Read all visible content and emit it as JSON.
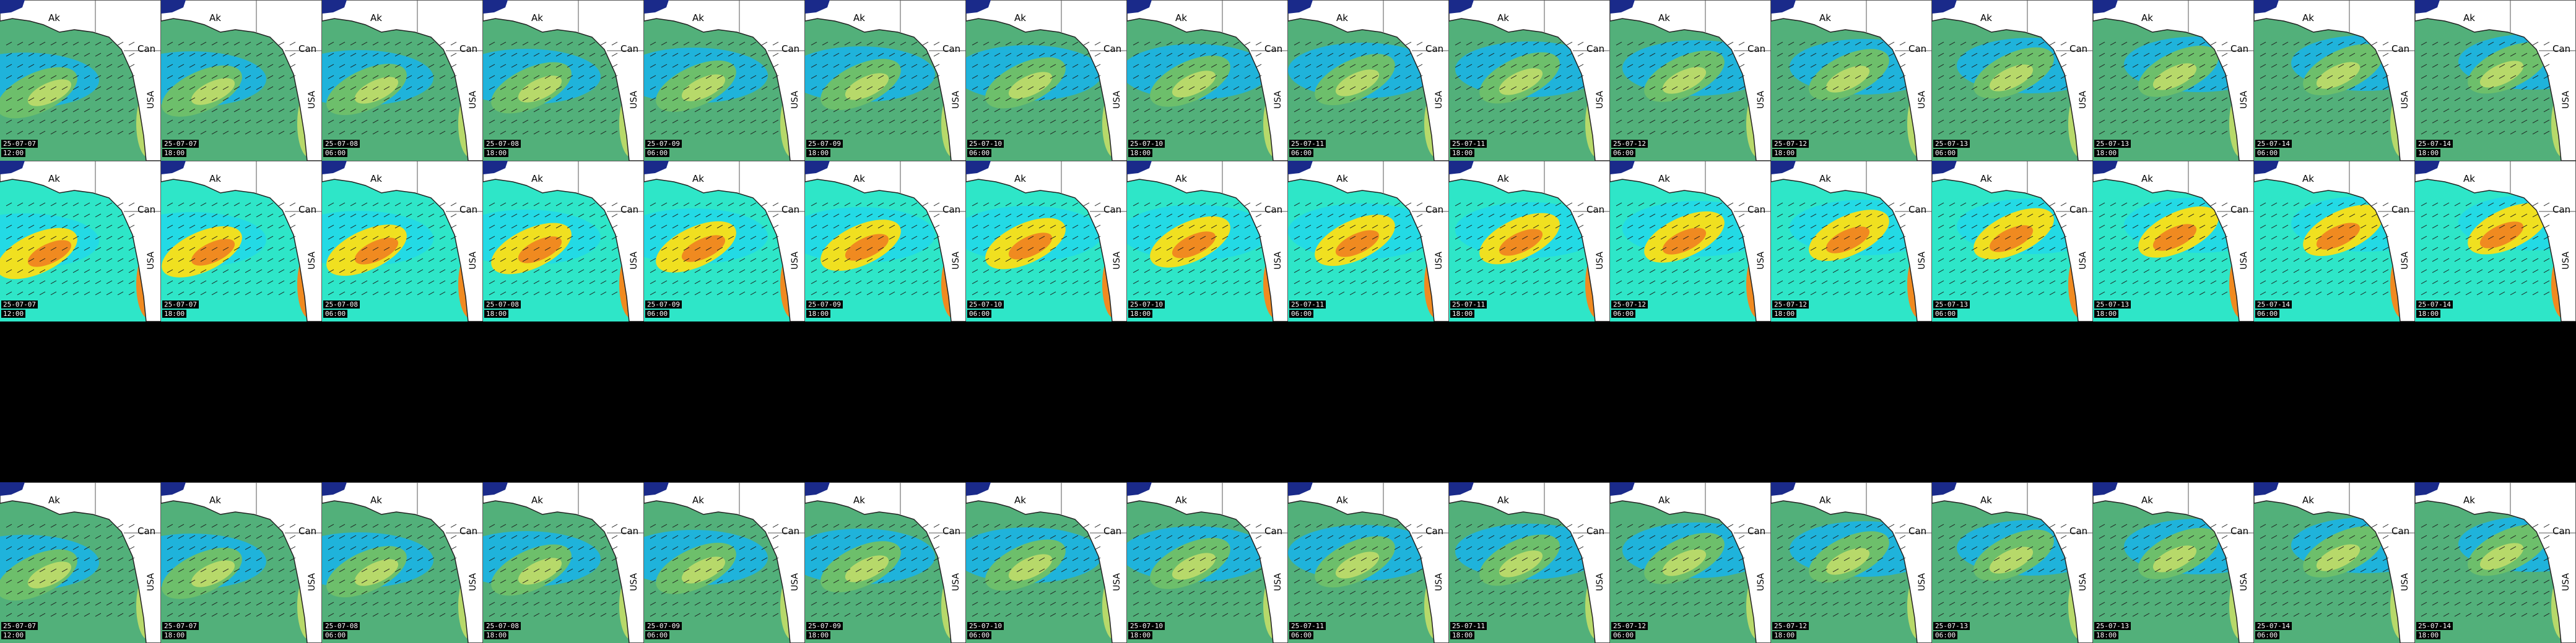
{
  "map_grid": {
    "region_labels": {
      "alaska": "Ak",
      "canada": "Can",
      "usa": "USA"
    },
    "rows": [
      {
        "id": "wave-height",
        "theme": "sea-green"
      },
      {
        "id": "wave-period",
        "theme": "rainbow"
      },
      {
        "id": "no-data",
        "theme": "black"
      },
      {
        "id": "swell-height",
        "theme": "sea-green"
      }
    ],
    "frames": [
      {
        "date": "25-07-07",
        "time": "12:00"
      },
      {
        "date": "25-07-07",
        "time": "18:00"
      },
      {
        "date": "25-07-08",
        "time": "06:00"
      },
      {
        "date": "25-07-08",
        "time": "18:00"
      },
      {
        "date": "25-07-09",
        "time": "06:00"
      },
      {
        "date": "25-07-09",
        "time": "18:00"
      },
      {
        "date": "25-07-10",
        "time": "06:00"
      },
      {
        "date": "25-07-10",
        "time": "18:00"
      },
      {
        "date": "25-07-11",
        "time": "06:00"
      },
      {
        "date": "25-07-11",
        "time": "18:00"
      },
      {
        "date": "25-07-12",
        "time": "06:00"
      },
      {
        "date": "25-07-12",
        "time": "18:00"
      },
      {
        "date": "25-07-13",
        "time": "06:00"
      },
      {
        "date": "25-07-13",
        "time": "18:00"
      },
      {
        "date": "25-07-14",
        "time": "06:00"
      },
      {
        "date": "25-07-14",
        "time": "18:00"
      }
    ]
  }
}
